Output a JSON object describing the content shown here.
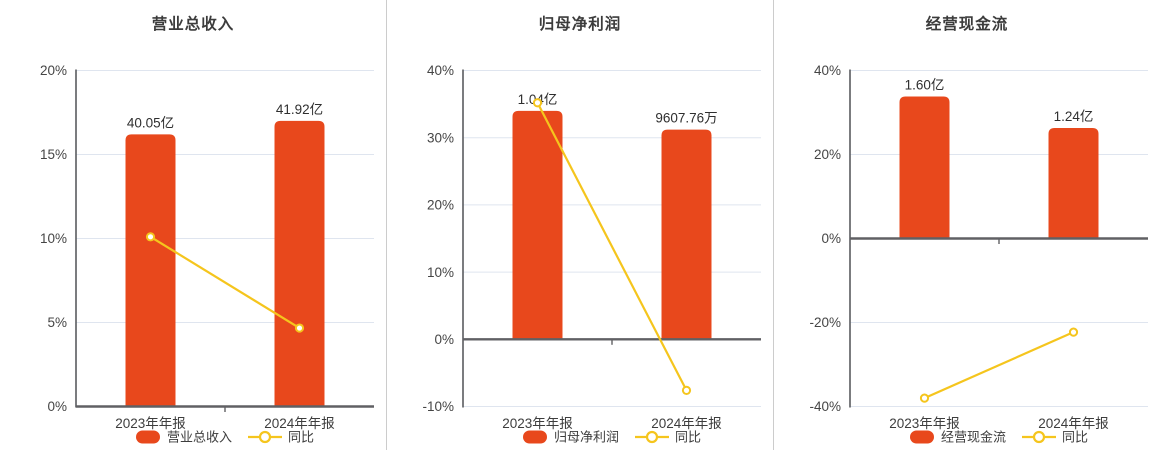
{
  "colors": {
    "bar": "#e8481c",
    "line": "#f5c51d",
    "marker_fill": "#ffffff",
    "grid": "#dfe5ef",
    "axis": "#5a5b5f",
    "zero_line": "#606064",
    "title_text": "#3c3c3c",
    "tick_text": "#454545",
    "value_text": "#2f2f2f",
    "category_text": "#3d3d3d",
    "legend_text": "#3d3d3d",
    "divider": "#cccccc",
    "background": "#ffffff"
  },
  "chart_data": [
    {
      "type": "bar+line",
      "title": "营业总收入",
      "categories": [
        "2023年年报",
        "2024年年报"
      ],
      "bar_series": {
        "name": "营业总收入",
        "value_labels": [
          "40.05亿",
          "41.92亿"
        ],
        "height_pct": [
          16.2,
          17.0
        ]
      },
      "line_series": {
        "name": "同比",
        "values_pct": [
          10.1,
          4.67
        ]
      },
      "y_axis": {
        "min": 0,
        "max": 20,
        "tick_values": [
          0,
          5,
          10,
          15,
          20
        ],
        "tick_labels": [
          "0%",
          "5%",
          "10%",
          "15%",
          "20%"
        ]
      },
      "grid": true,
      "legend_position": "bottom"
    },
    {
      "type": "bar+line",
      "title": "归母净利润",
      "categories": [
        "2023年年报",
        "2024年年报"
      ],
      "bar_series": {
        "name": "归母净利润",
        "value_labels": [
          "1.04亿",
          "9607.76万"
        ],
        "height_pct": [
          34.0,
          31.2
        ]
      },
      "line_series": {
        "name": "同比",
        "values_pct": [
          35.2,
          -7.6
        ]
      },
      "y_axis": {
        "min": -10,
        "max": 40,
        "tick_values": [
          -10,
          0,
          10,
          20,
          30,
          40
        ],
        "tick_labels": [
          "-10%",
          "0%",
          "10%",
          "20%",
          "30%",
          "40%"
        ]
      },
      "grid": true,
      "legend_position": "bottom"
    },
    {
      "type": "bar+line",
      "title": "经营现金流",
      "categories": [
        "2023年年报",
        "2024年年报"
      ],
      "bar_series": {
        "name": "经营现金流",
        "value_labels": [
          "1.60亿",
          "1.24亿"
        ],
        "height_pct": [
          33.8,
          26.3
        ]
      },
      "line_series": {
        "name": "同比",
        "values_pct": [
          -38.0,
          -22.3
        ]
      },
      "y_axis": {
        "min": -40,
        "max": 40,
        "tick_values": [
          -40,
          -20,
          0,
          20,
          40
        ],
        "tick_labels": [
          "-40%",
          "-20%",
          "0%",
          "20%",
          "40%"
        ]
      },
      "grid": true,
      "legend_position": "bottom"
    }
  ]
}
